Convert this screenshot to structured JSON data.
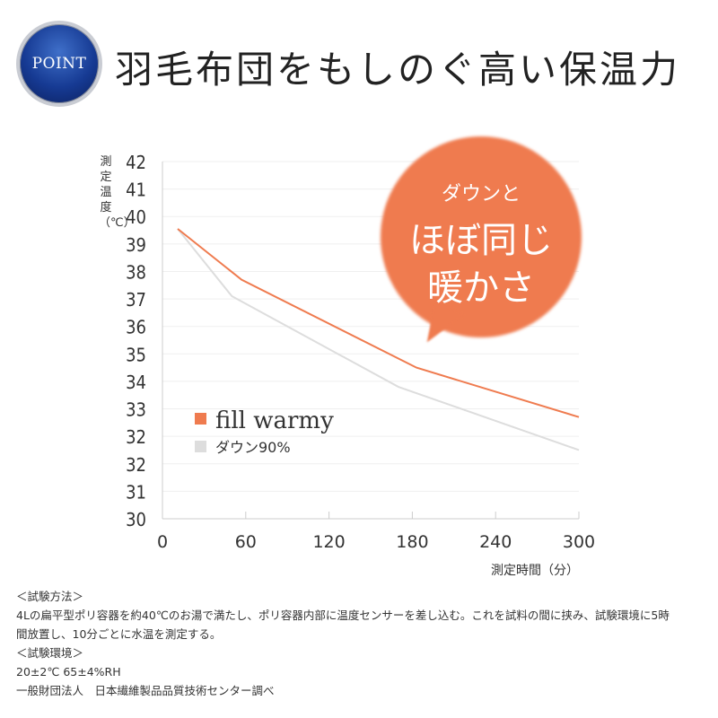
{
  "header": {
    "badge": "POINT",
    "title": "羽毛布団をもしのぐ高い保温力"
  },
  "bubble": {
    "line1": "ダウンと",
    "line2": "ほぼ同じ",
    "line3": "暖かさ"
  },
  "chart_data": {
    "type": "line",
    "title": "羽毛布団をもしのぐ高い保温力",
    "ylabel": "測定温度（℃）",
    "xlabel": "測定時間（分）",
    "xlim": [
      0,
      300
    ],
    "ylim": [
      29,
      42
    ],
    "xticks": [
      0,
      60,
      120,
      180,
      240,
      300
    ],
    "ytick_labels": [
      "42",
      "41",
      "40",
      "39",
      "38",
      "37",
      "36",
      "35",
      "34",
      "33",
      "32",
      "32",
      "31",
      "30"
    ],
    "grid": true,
    "legend_position": "lower-left",
    "series": [
      {
        "name": "fill warmy",
        "color": "#ef7b4f",
        "x": [
          11,
          57,
          183,
          300
        ],
        "y": [
          39.55,
          37.7,
          34.5,
          32.7
        ]
      },
      {
        "name": "ダウン90%",
        "color": "#dddddd",
        "x": [
          11,
          50,
          170,
          300
        ],
        "y": [
          39.55,
          37.1,
          33.8,
          31.5
        ]
      }
    ]
  },
  "notes": [
    "＜試験方法＞",
    "4Lの扁平型ポリ容器を約40℃のお湯で満たし、ポリ容器内部に温度センサーを差し込む。これを試料の間に挟み、試験環境に5時",
    "間放置し、10分ごとに水温を測定する。",
    "＜試験環境＞",
    "20±2℃ 65±4%RH",
    "一般財団法人　日本繊維製品品質技術センター調べ"
  ]
}
